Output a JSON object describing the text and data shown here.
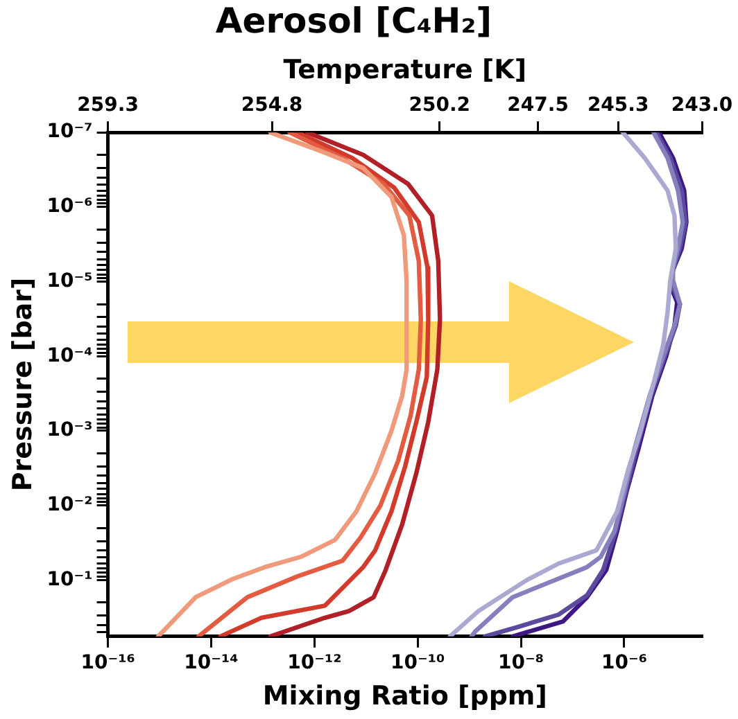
{
  "chart_data": {
    "type": "line",
    "title": "Aerosol [C₄H₂]",
    "xlabel": "Mixing Ratio [ppm]",
    "ylabel": "Pressure [bar]",
    "x2label": "Temperature [K]",
    "log": "xy",
    "xlim": [
      1e-16,
      3.2e-05
    ],
    "xticks": [
      {
        "value": 1e-16,
        "label": "10⁻¹⁶"
      },
      {
        "value": 1e-14,
        "label": "10⁻¹⁴"
      },
      {
        "value": 1e-12,
        "label": "10⁻¹²"
      },
      {
        "value": 1e-10,
        "label": "10⁻¹⁰"
      },
      {
        "value": 1e-08,
        "label": "10⁻⁸"
      },
      {
        "value": 1e-06,
        "label": "10⁻⁶"
      }
    ],
    "x2lim": [
      259.3,
      243.0
    ],
    "x2ticks": [
      {
        "value": 259.3,
        "label": "259.3"
      },
      {
        "value": 254.8,
        "label": "254.8"
      },
      {
        "value": 250.2,
        "label": "250.2"
      },
      {
        "value": 247.5,
        "label": "247.5"
      },
      {
        "value": 245.3,
        "label": "245.3"
      },
      {
        "value": 243.0,
        "label": "243.0"
      }
    ],
    "ylim": [
      0.57,
      1e-07
    ],
    "yticks": [
      {
        "value": 1e-07,
        "label": "10⁻⁷"
      },
      {
        "value": 2e-07,
        "label": null
      },
      {
        "value": 3e-07,
        "label": null
      },
      {
        "value": 4e-07,
        "label": null
      },
      {
        "value": 5e-07,
        "label": null
      },
      {
        "value": 6e-07,
        "label": null
      },
      {
        "value": 7e-07,
        "label": null
      },
      {
        "value": 8e-07,
        "label": null
      },
      {
        "value": 9e-07,
        "label": null
      },
      {
        "value": 1e-06,
        "label": "10⁻⁶"
      },
      {
        "value": 2e-06,
        "label": null
      },
      {
        "value": 3e-06,
        "label": null
      },
      {
        "value": 4e-06,
        "label": null
      },
      {
        "value": 5e-06,
        "label": null
      },
      {
        "value": 6e-06,
        "label": null
      },
      {
        "value": 7e-06,
        "label": null
      },
      {
        "value": 8e-06,
        "label": null
      },
      {
        "value": 9e-06,
        "label": null
      },
      {
        "value": 1e-05,
        "label": "10⁻⁵"
      },
      {
        "value": 2e-05,
        "label": null
      },
      {
        "value": 3e-05,
        "label": null
      },
      {
        "value": 4e-05,
        "label": null
      },
      {
        "value": 5e-05,
        "label": null
      },
      {
        "value": 6e-05,
        "label": null
      },
      {
        "value": 7e-05,
        "label": null
      },
      {
        "value": 8e-05,
        "label": null
      },
      {
        "value": 9e-05,
        "label": null
      },
      {
        "value": 0.0001,
        "label": "10⁻⁴"
      },
      {
        "value": 0.0002,
        "label": null
      },
      {
        "value": 0.0003,
        "label": null
      },
      {
        "value": 0.0004,
        "label": null
      },
      {
        "value": 0.0005,
        "label": null
      },
      {
        "value": 0.0006,
        "label": null
      },
      {
        "value": 0.0007,
        "label": null
      },
      {
        "value": 0.0008,
        "label": null
      },
      {
        "value": 0.0009,
        "label": null
      },
      {
        "value": 0.001,
        "label": "10⁻³"
      },
      {
        "value": 0.002,
        "label": null
      },
      {
        "value": 0.003,
        "label": null
      },
      {
        "value": 0.004,
        "label": null
      },
      {
        "value": 0.005,
        "label": null
      },
      {
        "value": 0.006,
        "label": null
      },
      {
        "value": 0.007,
        "label": null
      },
      {
        "value": 0.008,
        "label": null
      },
      {
        "value": 0.009,
        "label": null
      },
      {
        "value": 0.01,
        "label": "10⁻²"
      },
      {
        "value": 0.02,
        "label": null
      },
      {
        "value": 0.03,
        "label": null
      },
      {
        "value": 0.04,
        "label": null
      },
      {
        "value": 0.05,
        "label": null
      },
      {
        "value": 0.06,
        "label": null
      },
      {
        "value": 0.07,
        "label": null
      },
      {
        "value": 0.08,
        "label": null
      },
      {
        "value": 0.09,
        "label": null
      },
      {
        "value": 0.1,
        "label": "10⁻¹"
      },
      {
        "value": 0.2,
        "label": null
      },
      {
        "value": 0.3,
        "label": null
      },
      {
        "value": 0.4,
        "label": null
      },
      {
        "value": 0.5,
        "label": null
      }
    ],
    "series": [
      {
        "color": "#f09a7c",
        "x": [
          1.4e-13,
          1.4e-12,
          8.8e-12,
          3.1e-11,
          5.4e-11,
          6.1e-11,
          6.1e-11,
          5e-11,
          3.1e-11,
          1.5e-11,
          6.5e-12,
          2.5e-12,
          5.4e-13,
          1.1e-13,
          2.7e-14,
          5e-15,
          9.4e-16
        ],
        "values": [
          1e-07,
          1.8e-07,
          3e-07,
          7.3e-07,
          2.4e-06,
          1e-05,
          0.00015,
          0.00034,
          0.001,
          0.0037,
          0.012,
          0.029,
          0.049,
          0.067,
          0.096,
          0.17,
          0.57
        ]
      },
      {
        "color": "#e35b41",
        "x": [
          3.3e-13,
          3.5e-12,
          2.2e-11,
          6.9e-11,
          1.05e-10,
          1.15e-10,
          1.05e-10,
          7.3e-11,
          4.2e-11,
          1.9e-11,
          7.8e-12,
          3.5e-12,
          4.7e-13,
          5e-14,
          5.7e-15
        ],
        "values": [
          1e-07,
          2.2e-07,
          4.9e-07,
          1.3e-06,
          5.3e-06,
          3.2e-05,
          0.00015,
          0.00062,
          0.0025,
          0.01,
          0.027,
          0.055,
          0.089,
          0.17,
          0.57
        ]
      },
      {
        "color": "#d23a2c",
        "x": [
          4.7e-13,
          5.4e-12,
          3.5e-11,
          1.05e-10,
          1.55e-10,
          1.6e-10,
          1.5e-10,
          9.4e-11,
          5.7e-11,
          3.1e-11,
          1.5e-11,
          8.8e-12,
          1.6e-12,
          9.4e-14,
          1.5e-14
        ],
        "values": [
          1e-07,
          2.2e-07,
          5.5e-07,
          1.6e-06,
          6.5e-06,
          3.2e-05,
          0.00019,
          0.00076,
          0.003,
          0.012,
          0.04,
          0.067,
          0.22,
          0.32,
          0.57
        ]
      },
      {
        "color": "#b11f27",
        "x": [
          7.3e-13,
          8.8e-12,
          6.5e-11,
          1.9e-10,
          2.5e-10,
          2.7e-10,
          2.4e-10,
          1.6e-10,
          9.4e-11,
          5e-11,
          2.4e-11,
          1.4e-11,
          4.7e-12,
          1.6e-12,
          1.4e-13
        ],
        "values": [
          1e-07,
          2e-07,
          4.9e-07,
          1.3e-06,
          5.3e-06,
          3.2e-05,
          0.00015,
          0.00076,
          0.0037,
          0.018,
          0.073,
          0.17,
          0.26,
          0.32,
          0.57
        ]
      },
      {
        "color": "#aaa9d2",
        "x": [
          9.4e-07,
          2.5e-06,
          6.9e-06,
          9.4e-06,
          1e-05,
          7.8e-06,
          6.9e-06,
          5.7e-06,
          3.7e-06,
          2e-06,
          1.2e-06,
          7.3e-07,
          2.9e-07,
          5.4e-08,
          1.3e-08,
          1.5e-09,
          4.2e-10
        ],
        "values": [
          1e-07,
          2.2e-07,
          6e-07,
          1.3e-06,
          3.6e-06,
          9.6e-06,
          2.6e-05,
          7e-05,
          0.00023,
          0.0011,
          0.0033,
          0.012,
          0.04,
          0.06,
          0.1,
          0.26,
          0.57
        ]
      },
      {
        "color": "#8580bd",
        "x": [
          3.7e-06,
          6.9e-06,
          1.1e-05,
          1.36e-05,
          1.1e-05,
          8.8e-06,
          8.8e-06,
          1.2e-05,
          9.4e-06,
          5.7e-06,
          3.1e-06,
          1.6e-06,
          1e-06,
          6.5e-07,
          3.5e-07,
          1.9e-07,
          6.9e-09,
          1.3e-09,
          1.1e-09
        ],
        "values": [
          1e-07,
          2.2e-07,
          6e-07,
          1.6e-06,
          3.6e-06,
          6.5e-06,
          9.6e-06,
          2e-05,
          3.9e-05,
          0.0001,
          0.00034,
          0.0017,
          0.0067,
          0.022,
          0.049,
          0.067,
          0.17,
          0.49,
          0.57
        ]
      },
      {
        "color": "#5c4a9f",
        "x": [
          4.2e-06,
          7.8e-06,
          1.3e-05,
          1.55e-05,
          1.2e-05,
          8.8e-06,
          8.3e-06,
          1.2e-05,
          1e-05,
          6.1e-06,
          3.3e-06,
          1.75e-06,
          1.06e-06,
          6.9e-07,
          3.9e-07,
          1.9e-07,
          5.4e-08,
          8.3e-09,
          2e-09
        ],
        "values": [
          1e-07,
          2.2e-07,
          6e-07,
          1.6e-06,
          3.6e-06,
          7e-06,
          1.1e-05,
          2e-05,
          3.9e-05,
          0.0001,
          0.00034,
          0.0017,
          0.0067,
          0.022,
          0.073,
          0.16,
          0.29,
          0.43,
          0.57
        ]
      },
      {
        "color": "#3f1784",
        "x": [
          4.7e-06,
          8.8e-06,
          1.45e-05,
          1.6e-05,
          1.3e-05,
          8.8e-06,
          7.8e-06,
          1.06e-05,
          9.4e-06,
          6.5e-06,
          3.5e-06,
          1.9e-06,
          1.1e-06,
          7.3e-07,
          4.5e-07,
          1.9e-07,
          6.5e-08,
          6.9e-09
        ],
        "values": [
          1e-07,
          2.2e-07,
          6e-07,
          1.6e-06,
          3.6e-06,
          7e-06,
          1.1e-05,
          1.9e-05,
          3.9e-05,
          0.0001,
          0.00034,
          0.0017,
          0.0067,
          0.022,
          0.073,
          0.17,
          0.36,
          0.57
        ]
      }
    ]
  }
}
